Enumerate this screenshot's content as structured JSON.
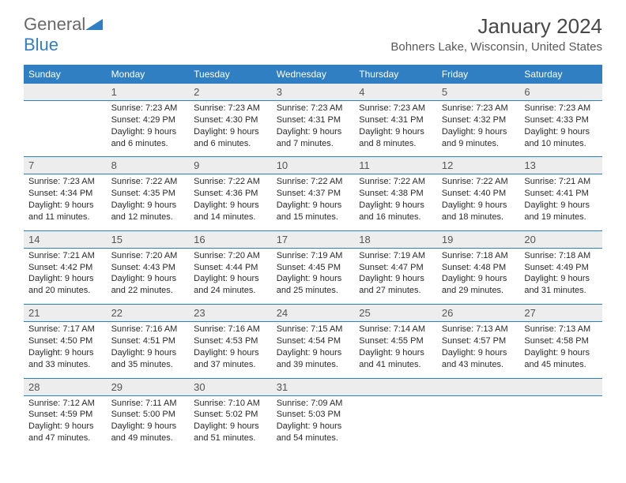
{
  "logo": {
    "textA": "General",
    "textB": "Blue",
    "color_gray": "#686868",
    "color_blue": "#2f7fc2"
  },
  "title": "January 2024",
  "location": "Bohners Lake, Wisconsin, United States",
  "colors": {
    "header_bg": "#2f7fc2",
    "header_fg": "#ffffff",
    "daynum_bg": "#ededed",
    "border": "#2f7fc2",
    "text": "#2a2a2a"
  },
  "weekdays": [
    "Sunday",
    "Monday",
    "Tuesday",
    "Wednesday",
    "Thursday",
    "Friday",
    "Saturday"
  ],
  "weeks": [
    [
      {
        "day": "",
        "lines": []
      },
      {
        "day": "1",
        "lines": [
          "Sunrise: 7:23 AM",
          "Sunset: 4:29 PM",
          "Daylight: 9 hours",
          "and 6 minutes."
        ]
      },
      {
        "day": "2",
        "lines": [
          "Sunrise: 7:23 AM",
          "Sunset: 4:30 PM",
          "Daylight: 9 hours",
          "and 6 minutes."
        ]
      },
      {
        "day": "3",
        "lines": [
          "Sunrise: 7:23 AM",
          "Sunset: 4:31 PM",
          "Daylight: 9 hours",
          "and 7 minutes."
        ]
      },
      {
        "day": "4",
        "lines": [
          "Sunrise: 7:23 AM",
          "Sunset: 4:31 PM",
          "Daylight: 9 hours",
          "and 8 minutes."
        ]
      },
      {
        "day": "5",
        "lines": [
          "Sunrise: 7:23 AM",
          "Sunset: 4:32 PM",
          "Daylight: 9 hours",
          "and 9 minutes."
        ]
      },
      {
        "day": "6",
        "lines": [
          "Sunrise: 7:23 AM",
          "Sunset: 4:33 PM",
          "Daylight: 9 hours",
          "and 10 minutes."
        ]
      }
    ],
    [
      {
        "day": "7",
        "lines": [
          "Sunrise: 7:23 AM",
          "Sunset: 4:34 PM",
          "Daylight: 9 hours",
          "and 11 minutes."
        ]
      },
      {
        "day": "8",
        "lines": [
          "Sunrise: 7:22 AM",
          "Sunset: 4:35 PM",
          "Daylight: 9 hours",
          "and 12 minutes."
        ]
      },
      {
        "day": "9",
        "lines": [
          "Sunrise: 7:22 AM",
          "Sunset: 4:36 PM",
          "Daylight: 9 hours",
          "and 14 minutes."
        ]
      },
      {
        "day": "10",
        "lines": [
          "Sunrise: 7:22 AM",
          "Sunset: 4:37 PM",
          "Daylight: 9 hours",
          "and 15 minutes."
        ]
      },
      {
        "day": "11",
        "lines": [
          "Sunrise: 7:22 AM",
          "Sunset: 4:38 PM",
          "Daylight: 9 hours",
          "and 16 minutes."
        ]
      },
      {
        "day": "12",
        "lines": [
          "Sunrise: 7:22 AM",
          "Sunset: 4:40 PM",
          "Daylight: 9 hours",
          "and 18 minutes."
        ]
      },
      {
        "day": "13",
        "lines": [
          "Sunrise: 7:21 AM",
          "Sunset: 4:41 PM",
          "Daylight: 9 hours",
          "and 19 minutes."
        ]
      }
    ],
    [
      {
        "day": "14",
        "lines": [
          "Sunrise: 7:21 AM",
          "Sunset: 4:42 PM",
          "Daylight: 9 hours",
          "and 20 minutes."
        ]
      },
      {
        "day": "15",
        "lines": [
          "Sunrise: 7:20 AM",
          "Sunset: 4:43 PM",
          "Daylight: 9 hours",
          "and 22 minutes."
        ]
      },
      {
        "day": "16",
        "lines": [
          "Sunrise: 7:20 AM",
          "Sunset: 4:44 PM",
          "Daylight: 9 hours",
          "and 24 minutes."
        ]
      },
      {
        "day": "17",
        "lines": [
          "Sunrise: 7:19 AM",
          "Sunset: 4:45 PM",
          "Daylight: 9 hours",
          "and 25 minutes."
        ]
      },
      {
        "day": "18",
        "lines": [
          "Sunrise: 7:19 AM",
          "Sunset: 4:47 PM",
          "Daylight: 9 hours",
          "and 27 minutes."
        ]
      },
      {
        "day": "19",
        "lines": [
          "Sunrise: 7:18 AM",
          "Sunset: 4:48 PM",
          "Daylight: 9 hours",
          "and 29 minutes."
        ]
      },
      {
        "day": "20",
        "lines": [
          "Sunrise: 7:18 AM",
          "Sunset: 4:49 PM",
          "Daylight: 9 hours",
          "and 31 minutes."
        ]
      }
    ],
    [
      {
        "day": "21",
        "lines": [
          "Sunrise: 7:17 AM",
          "Sunset: 4:50 PM",
          "Daylight: 9 hours",
          "and 33 minutes."
        ]
      },
      {
        "day": "22",
        "lines": [
          "Sunrise: 7:16 AM",
          "Sunset: 4:51 PM",
          "Daylight: 9 hours",
          "and 35 minutes."
        ]
      },
      {
        "day": "23",
        "lines": [
          "Sunrise: 7:16 AM",
          "Sunset: 4:53 PM",
          "Daylight: 9 hours",
          "and 37 minutes."
        ]
      },
      {
        "day": "24",
        "lines": [
          "Sunrise: 7:15 AM",
          "Sunset: 4:54 PM",
          "Daylight: 9 hours",
          "and 39 minutes."
        ]
      },
      {
        "day": "25",
        "lines": [
          "Sunrise: 7:14 AM",
          "Sunset: 4:55 PM",
          "Daylight: 9 hours",
          "and 41 minutes."
        ]
      },
      {
        "day": "26",
        "lines": [
          "Sunrise: 7:13 AM",
          "Sunset: 4:57 PM",
          "Daylight: 9 hours",
          "and 43 minutes."
        ]
      },
      {
        "day": "27",
        "lines": [
          "Sunrise: 7:13 AM",
          "Sunset: 4:58 PM",
          "Daylight: 9 hours",
          "and 45 minutes."
        ]
      }
    ],
    [
      {
        "day": "28",
        "lines": [
          "Sunrise: 7:12 AM",
          "Sunset: 4:59 PM",
          "Daylight: 9 hours",
          "and 47 minutes."
        ]
      },
      {
        "day": "29",
        "lines": [
          "Sunrise: 7:11 AM",
          "Sunset: 5:00 PM",
          "Daylight: 9 hours",
          "and 49 minutes."
        ]
      },
      {
        "day": "30",
        "lines": [
          "Sunrise: 7:10 AM",
          "Sunset: 5:02 PM",
          "Daylight: 9 hours",
          "and 51 minutes."
        ]
      },
      {
        "day": "31",
        "lines": [
          "Sunrise: 7:09 AM",
          "Sunset: 5:03 PM",
          "Daylight: 9 hours",
          "and 54 minutes."
        ]
      },
      {
        "day": "",
        "lines": []
      },
      {
        "day": "",
        "lines": []
      },
      {
        "day": "",
        "lines": []
      }
    ]
  ]
}
